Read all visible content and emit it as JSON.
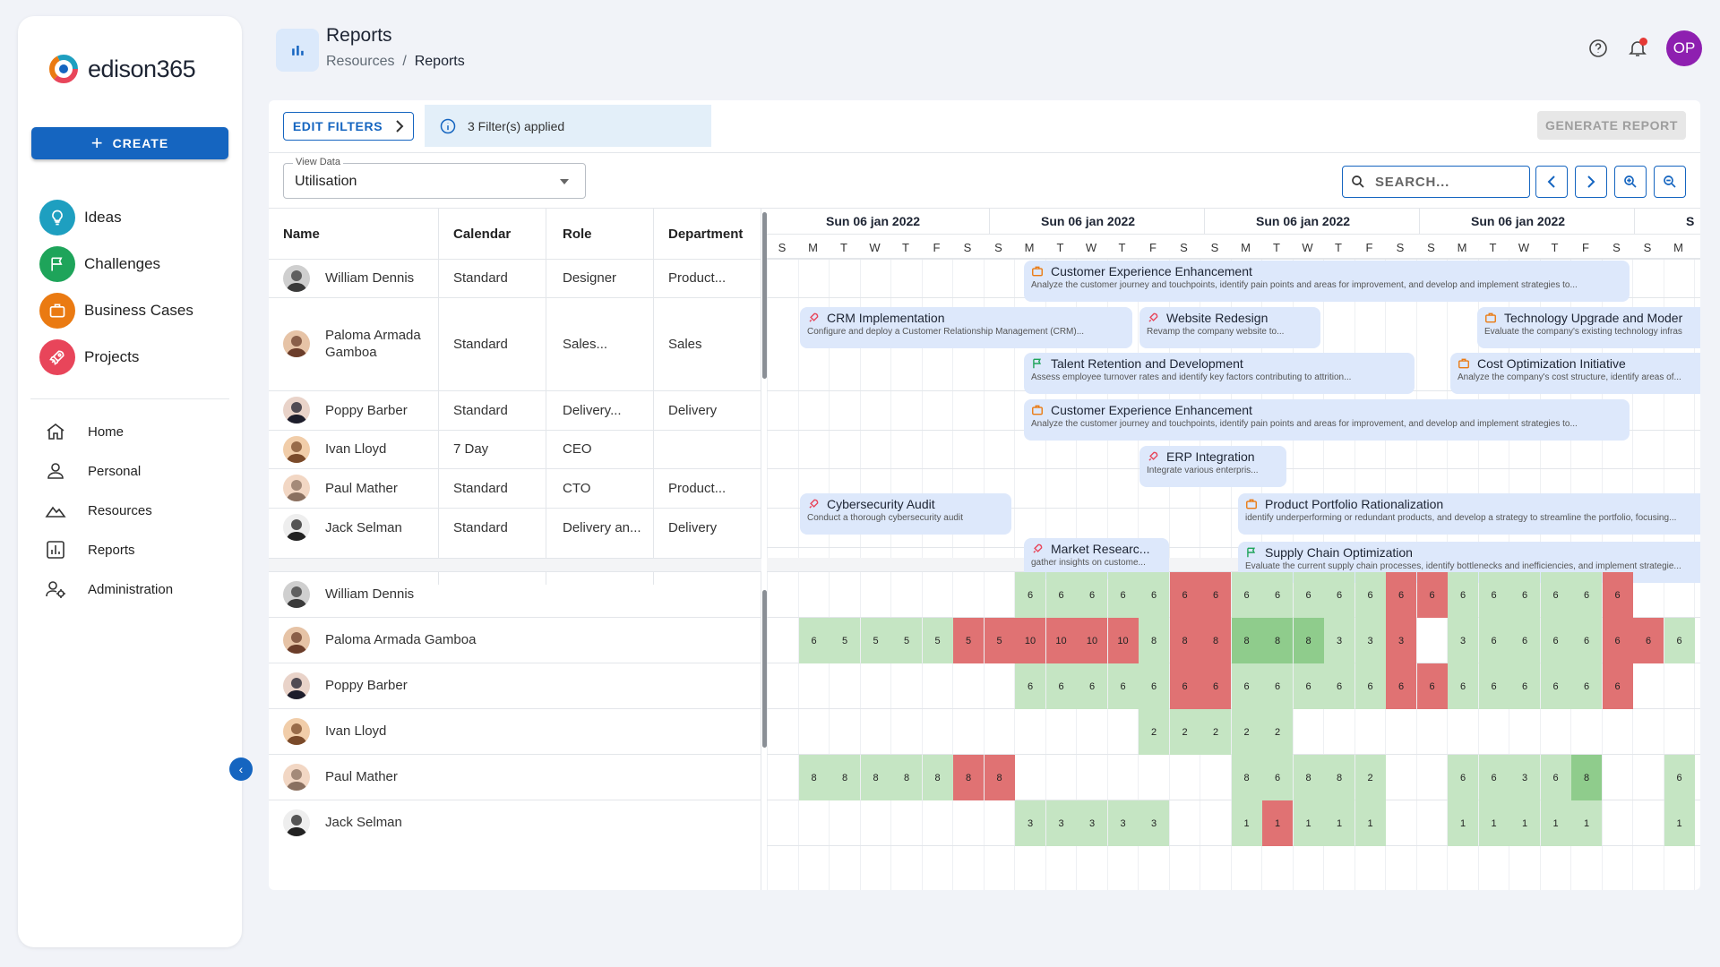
{
  "brand": {
    "name": "edison365"
  },
  "sidebar": {
    "create_label": "CREATE",
    "modules": [
      {
        "label": "Ideas",
        "icon": "lightbulb-icon",
        "color": "#1e9fc0"
      },
      {
        "label": "Challenges",
        "icon": "flag-icon",
        "color": "#1ea45a"
      },
      {
        "label": "Business Cases",
        "icon": "briefcase-icon",
        "color": "#ea7a12"
      },
      {
        "label": "Projects",
        "icon": "rocket-icon",
        "color": "#e8455a"
      }
    ],
    "nav": [
      {
        "label": "Home",
        "icon": "home-icon"
      },
      {
        "label": "Personal",
        "icon": "person-icon"
      },
      {
        "label": "Resources",
        "icon": "mountain-icon"
      },
      {
        "label": "Reports",
        "icon": "report-icon"
      },
      {
        "label": "Administration",
        "icon": "admin-icon"
      }
    ]
  },
  "header": {
    "title": "Reports",
    "breadcrumb_parent": "Resources",
    "breadcrumb_sep": "/",
    "breadcrumb_current": "Reports",
    "avatar_initials": "OP"
  },
  "toolbar": {
    "edit_filters": "EDIT FILTERS",
    "filters_applied": "3 Filter(s) applied",
    "generate_report": "GENERATE REPORT",
    "view_data_label": "View Data",
    "view_data_value": "Utilisation",
    "search_placeholder": "SEARCH..."
  },
  "table": {
    "columns": [
      "Name",
      "Calendar",
      "Role",
      "Department"
    ],
    "rows": [
      {
        "name": "William Dennis",
        "calendar": "Standard",
        "role": "Designer",
        "department": "Product..."
      },
      {
        "name": "Paloma Armada Gamboa",
        "calendar": "Standard",
        "role": "Sales...",
        "department": "Sales"
      },
      {
        "name": "Poppy Barber",
        "calendar": "Standard",
        "role": "Delivery...",
        "department": "Delivery"
      },
      {
        "name": "Ivan Lloyd",
        "calendar": "7 Day",
        "role": "CEO",
        "department": ""
      },
      {
        "name": "Paul Mather",
        "calendar": "Standard",
        "role": "CTO",
        "department": "Product..."
      },
      {
        "name": "Jack Selman",
        "calendar": "Standard",
        "role": "Delivery an...",
        "department": "Delivery"
      }
    ],
    "util_names": [
      "William Dennis",
      "Paloma Armada Gamboa",
      "Poppy Barber",
      "Ivan Lloyd",
      "Paul Mather",
      "Jack Selman"
    ]
  },
  "timeline": {
    "weeks": [
      "Sun 06 jan 2022",
      "Sun 06 jan 2022",
      "Sun 06 jan 2022",
      "Sun 06 jan 2022",
      "S"
    ],
    "days": [
      "S",
      "M",
      "T",
      "W",
      "T",
      "F",
      "S",
      "S",
      "M",
      "T",
      "W",
      "T",
      "F",
      "S",
      "S",
      "M",
      "T",
      "W",
      "T",
      "F",
      "S",
      "S",
      "M",
      "T",
      "W",
      "T",
      "F",
      "S",
      "S",
      "M"
    ],
    "bars": [
      {
        "icon": "briefcase",
        "title": "Customer Experience Enhancement",
        "desc": "Analyze the customer journey and touchpoints, identify pain points and areas for improvement, and develop and implement strategies to..."
      },
      {
        "icon": "rocket",
        "title": "CRM Implementation",
        "desc": "Configure and deploy a Customer Relationship Management (CRM)..."
      },
      {
        "icon": "rocket",
        "title": "Website Redesign",
        "desc": "Revamp the company website to..."
      },
      {
        "icon": "briefcase",
        "title": "Technology Upgrade and Moder",
        "desc": "Evaluate the company's existing technology infras"
      },
      {
        "icon": "flag",
        "title": "Talent Retention and Development",
        "desc": "Assess employee turnover rates and identify key factors contributing to attrition..."
      },
      {
        "icon": "briefcase",
        "title": "Cost Optimization Initiative",
        "desc": "Analyze the company's cost structure, identify areas of..."
      },
      {
        "icon": "briefcase",
        "title": "Customer Experience Enhancement",
        "desc": "Analyze the customer journey and touchpoints, identify pain points and areas for improvement, and develop and implement strategies to..."
      },
      {
        "icon": "rocket",
        "title": "ERP Integration",
        "desc": "Integrate various enterpris..."
      },
      {
        "icon": "rocket",
        "title": "Cybersecurity Audit",
        "desc": "Conduct a thorough cybersecurity audit"
      },
      {
        "icon": "briefcase",
        "title": "Product Portfolio Rationalization",
        "desc": "identify underperforming or redundant products, and develop a strategy to streamline the portfolio, focusing..."
      },
      {
        "icon": "rocket",
        "title": "Market Researc...",
        "desc": "gather insights on custome..."
      },
      {
        "icon": "flag",
        "title": "Supply Chain Optimization",
        "desc": "Evaluate the current supply chain processes, identify bottlenecks and inefficiencies, and implement strategie..."
      }
    ],
    "utilisation": [
      {
        "values": [
          [
            8,
            "6",
            "g"
          ],
          [
            9,
            "6",
            "g"
          ],
          [
            10,
            "6",
            "g"
          ],
          [
            11,
            "6",
            "g"
          ],
          [
            12,
            "6",
            "g"
          ],
          [
            13,
            "6",
            "r"
          ],
          [
            14,
            "6",
            "r"
          ],
          [
            15,
            "6",
            "g"
          ],
          [
            16,
            "6",
            "g"
          ],
          [
            17,
            "6",
            "g"
          ],
          [
            18,
            "6",
            "g"
          ],
          [
            19,
            "6",
            "g"
          ],
          [
            20,
            "6",
            "r"
          ],
          [
            21,
            "6",
            "r"
          ],
          [
            22,
            "6",
            "g"
          ],
          [
            23,
            "6",
            "g"
          ],
          [
            24,
            "6",
            "g"
          ],
          [
            25,
            "6",
            "g"
          ],
          [
            26,
            "6",
            "g"
          ],
          [
            27,
            "6",
            "r"
          ]
        ]
      },
      {
        "values": [
          [
            1,
            "6",
            "g"
          ],
          [
            2,
            "5",
            "g"
          ],
          [
            3,
            "5",
            "g"
          ],
          [
            4,
            "5",
            "g"
          ],
          [
            5,
            "5",
            "g"
          ],
          [
            6,
            "5",
            "r"
          ],
          [
            7,
            "5",
            "r"
          ],
          [
            8,
            "10",
            "r"
          ],
          [
            9,
            "10",
            "r"
          ],
          [
            10,
            "10",
            "r"
          ],
          [
            11,
            "10",
            "r"
          ],
          [
            12,
            "8",
            "g"
          ],
          [
            13,
            "8",
            "r"
          ],
          [
            14,
            "8",
            "r"
          ],
          [
            15,
            "8",
            "dg"
          ],
          [
            16,
            "8",
            "dg"
          ],
          [
            17,
            "8",
            "dg"
          ],
          [
            18,
            "3",
            "g"
          ],
          [
            19,
            "3",
            "g"
          ],
          [
            20,
            "3",
            "r"
          ],
          [
            22,
            "3",
            "g"
          ],
          [
            23,
            "6",
            "g"
          ],
          [
            24,
            "6",
            "g"
          ],
          [
            25,
            "6",
            "g"
          ],
          [
            26,
            "6",
            "g"
          ],
          [
            27,
            "6",
            "r"
          ],
          [
            28,
            "6",
            "r"
          ],
          [
            29,
            "6",
            "g"
          ]
        ]
      },
      {
        "values": [
          [
            8,
            "6",
            "g"
          ],
          [
            9,
            "6",
            "g"
          ],
          [
            10,
            "6",
            "g"
          ],
          [
            11,
            "6",
            "g"
          ],
          [
            12,
            "6",
            "g"
          ],
          [
            13,
            "6",
            "r"
          ],
          [
            14,
            "6",
            "r"
          ],
          [
            15,
            "6",
            "g"
          ],
          [
            16,
            "6",
            "g"
          ],
          [
            17,
            "6",
            "g"
          ],
          [
            18,
            "6",
            "g"
          ],
          [
            19,
            "6",
            "g"
          ],
          [
            20,
            "6",
            "r"
          ],
          [
            21,
            "6",
            "r"
          ],
          [
            22,
            "6",
            "g"
          ],
          [
            23,
            "6",
            "g"
          ],
          [
            24,
            "6",
            "g"
          ],
          [
            25,
            "6",
            "g"
          ],
          [
            26,
            "6",
            "g"
          ],
          [
            27,
            "6",
            "r"
          ]
        ]
      },
      {
        "values": [
          [
            12,
            "2",
            "g"
          ],
          [
            13,
            "2",
            "g"
          ],
          [
            14,
            "2",
            "g"
          ],
          [
            15,
            "2",
            "g"
          ],
          [
            16,
            "2",
            "g"
          ]
        ]
      },
      {
        "values": [
          [
            1,
            "8",
            "g"
          ],
          [
            2,
            "8",
            "g"
          ],
          [
            3,
            "8",
            "g"
          ],
          [
            4,
            "8",
            "g"
          ],
          [
            5,
            "8",
            "g"
          ],
          [
            6,
            "8",
            "r"
          ],
          [
            7,
            "8",
            "r"
          ],
          [
            15,
            "8",
            "g"
          ],
          [
            16,
            "6",
            "g"
          ],
          [
            17,
            "8",
            "g"
          ],
          [
            18,
            "8",
            "g"
          ],
          [
            19,
            "2",
            "g"
          ],
          [
            22,
            "6",
            "g"
          ],
          [
            23,
            "6",
            "g"
          ],
          [
            24,
            "3",
            "g"
          ],
          [
            25,
            "6",
            "g"
          ],
          [
            26,
            "8",
            "dg"
          ],
          [
            28,
            "",
            ""
          ],
          [
            29,
            "6",
            "g"
          ]
        ]
      },
      {
        "values": [
          [
            8,
            "3",
            "g"
          ],
          [
            9,
            "3",
            "g"
          ],
          [
            10,
            "3",
            "g"
          ],
          [
            11,
            "3",
            "g"
          ],
          [
            12,
            "3",
            "g"
          ],
          [
            15,
            "1",
            "g"
          ],
          [
            16,
            "1",
            "r"
          ],
          [
            17,
            "1",
            "g"
          ],
          [
            18,
            "1",
            "g"
          ],
          [
            19,
            "1",
            "g"
          ],
          [
            22,
            "1",
            "g"
          ],
          [
            23,
            "1",
            "g"
          ],
          [
            24,
            "1",
            "g"
          ],
          [
            25,
            "1",
            "g"
          ],
          [
            26,
            "1",
            "g"
          ],
          [
            29,
            "1",
            "g"
          ]
        ]
      }
    ]
  }
}
